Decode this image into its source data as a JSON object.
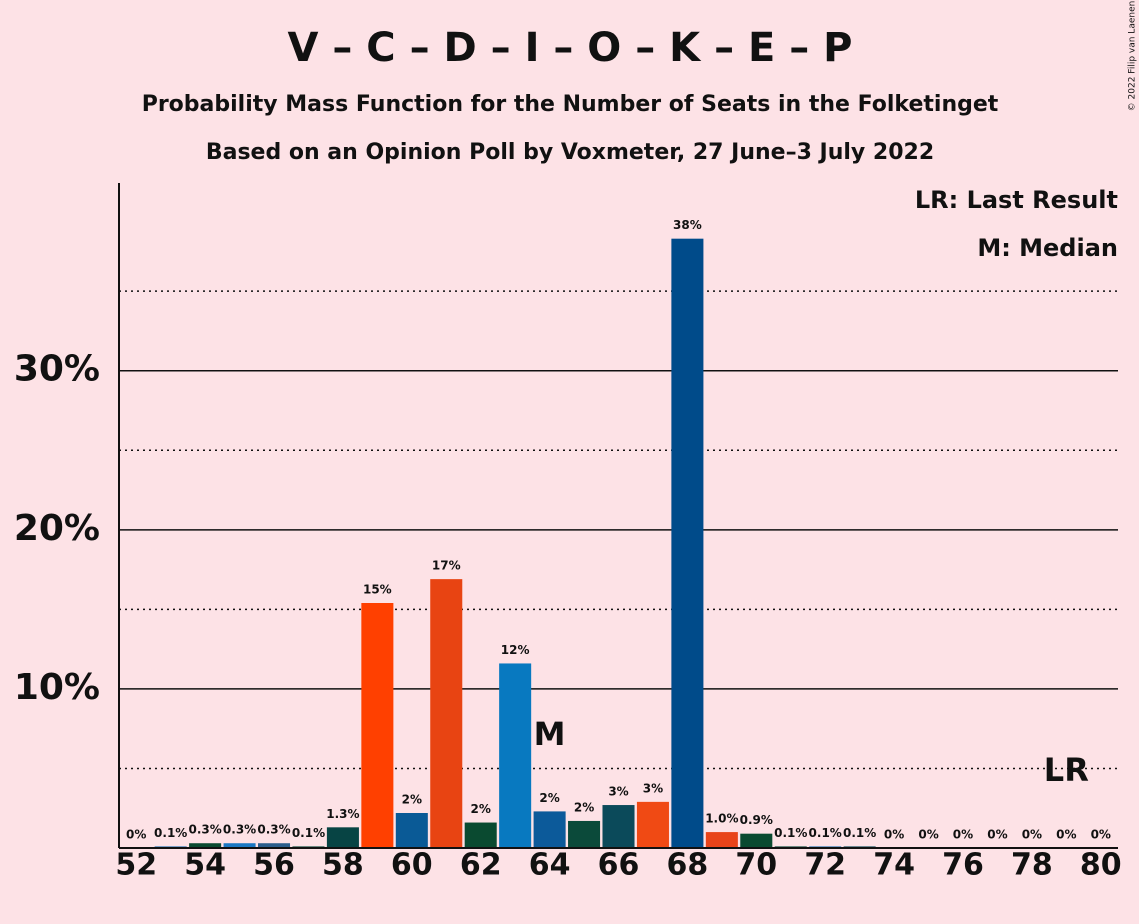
{
  "chart_data": {
    "type": "bar",
    "title": "V – C – D – I – O – K – E – P",
    "subtitle": "Probability Mass Function for the Number of Seats in the Folketinget",
    "subtitle2": "Based on an Opinion Poll by Voxmeter, 27 June–3 July 2022",
    "copyright": "© 2022 Filip van Laenen",
    "legend_lr": "LR: Last Result",
    "legend_m": "M: Median",
    "median": {
      "x": 64,
      "label": "M"
    },
    "last_result": {
      "x": 79,
      "label": "LR"
    },
    "x": [
      52,
      53,
      54,
      55,
      56,
      57,
      58,
      59,
      60,
      61,
      62,
      63,
      64,
      65,
      66,
      67,
      68,
      69,
      70,
      71,
      72,
      73,
      74,
      75,
      76,
      77,
      78,
      79,
      80
    ],
    "values": [
      0,
      0.1,
      0.3,
      0.3,
      0.3,
      0.1,
      1.3,
      15.4,
      2.2,
      16.9,
      1.6,
      11.6,
      2.3,
      1.7,
      2.7,
      2.9,
      38.3,
      1.0,
      0.9,
      0.1,
      0.1,
      0.1,
      0,
      0,
      0,
      0,
      0,
      0,
      0
    ],
    "value_labels": [
      "0%",
      "0.1%",
      "0.3%",
      "0.3%",
      "0.3%",
      "0.1%",
      "1.3%",
      "15%",
      "2%",
      "17%",
      "2%",
      "12%",
      "2%",
      "2%",
      "3%",
      "3%",
      "38%",
      "1.0%",
      "0.9%",
      "0.1%",
      "0.1%",
      "0.1%",
      "0%",
      "0%",
      "0%",
      "0%",
      "0%",
      "0%",
      "0%"
    ],
    "colors": [
      "#0a4a3c",
      "#1f6fb0",
      "#0a4a30",
      "#1a78c2",
      "#2a5d8a",
      "#0a4a3c",
      "#074444",
      "#ff4000",
      "#0a5a96",
      "#e84412",
      "#0a4a30",
      "#0879c0",
      "#0c5a9a",
      "#0b4a3a",
      "#0b4a5a",
      "#f04a14",
      "#004b8a",
      "#e8441a",
      "#0a4a30",
      "#0a4a3c",
      "#1f6fb0",
      "#0b4a5a",
      "#0a4a3c",
      "#0a4a3c",
      "#0a4a3c",
      "#0a4a3c",
      "#0a4a3c",
      "#0a4a3c",
      "#0a4a3c"
    ],
    "xlim": [
      51.5,
      80.5
    ],
    "xticks": [
      52,
      54,
      56,
      58,
      60,
      62,
      64,
      66,
      68,
      70,
      72,
      74,
      76,
      78,
      80
    ],
    "ylim": [
      0,
      41.8
    ],
    "yticks": [
      {
        "value": 10,
        "label": "10%"
      },
      {
        "value": 20,
        "label": "20%"
      },
      {
        "value": 30,
        "label": "30%"
      }
    ],
    "minor_yticks": [
      5,
      15,
      25,
      35
    ],
    "grid": true
  }
}
